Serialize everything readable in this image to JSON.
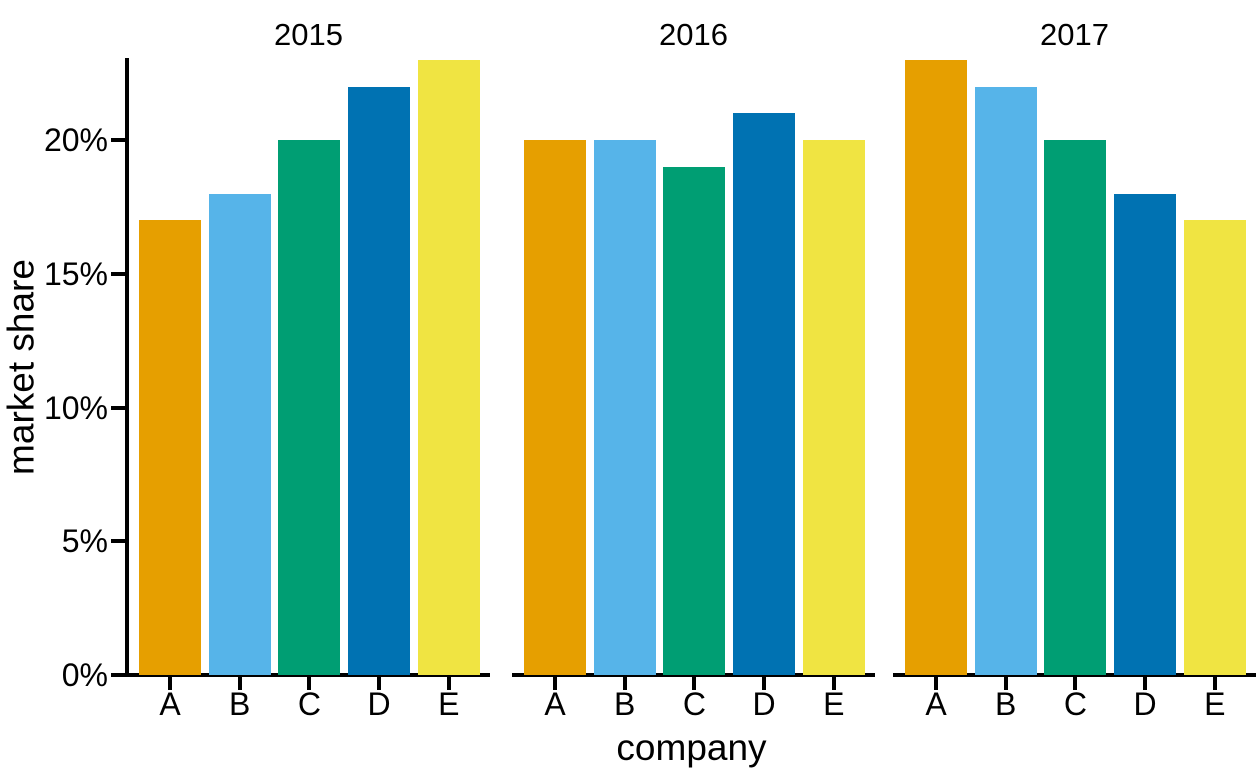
{
  "chart_data": {
    "type": "bar",
    "title": "",
    "facet_variable": "year",
    "xlabel": "company",
    "ylabel": "market share",
    "categories": [
      "A",
      "B",
      "C",
      "D",
      "E"
    ],
    "bar_colors": [
      "#E69F00",
      "#56B4E9",
      "#009E73",
      "#0072B2",
      "#F0E442"
    ],
    "axis_color": "#000000",
    "background_color": "#ffffff",
    "ylim": [
      0,
      23
    ],
    "grid": false,
    "legend": false,
    "yticks": [
      {
        "value": 0,
        "label": "0%"
      },
      {
        "value": 5,
        "label": "5%"
      },
      {
        "value": 10,
        "label": "10%"
      },
      {
        "value": 15,
        "label": "15%"
      },
      {
        "value": 20,
        "label": "20%"
      }
    ],
    "facets": [
      {
        "title": "2015",
        "values": [
          17,
          18,
          20,
          22,
          23
        ]
      },
      {
        "title": "2016",
        "values": [
          20,
          20,
          19,
          21,
          20
        ]
      },
      {
        "title": "2017",
        "values": [
          23,
          22,
          20,
          18,
          17
        ]
      }
    ]
  }
}
